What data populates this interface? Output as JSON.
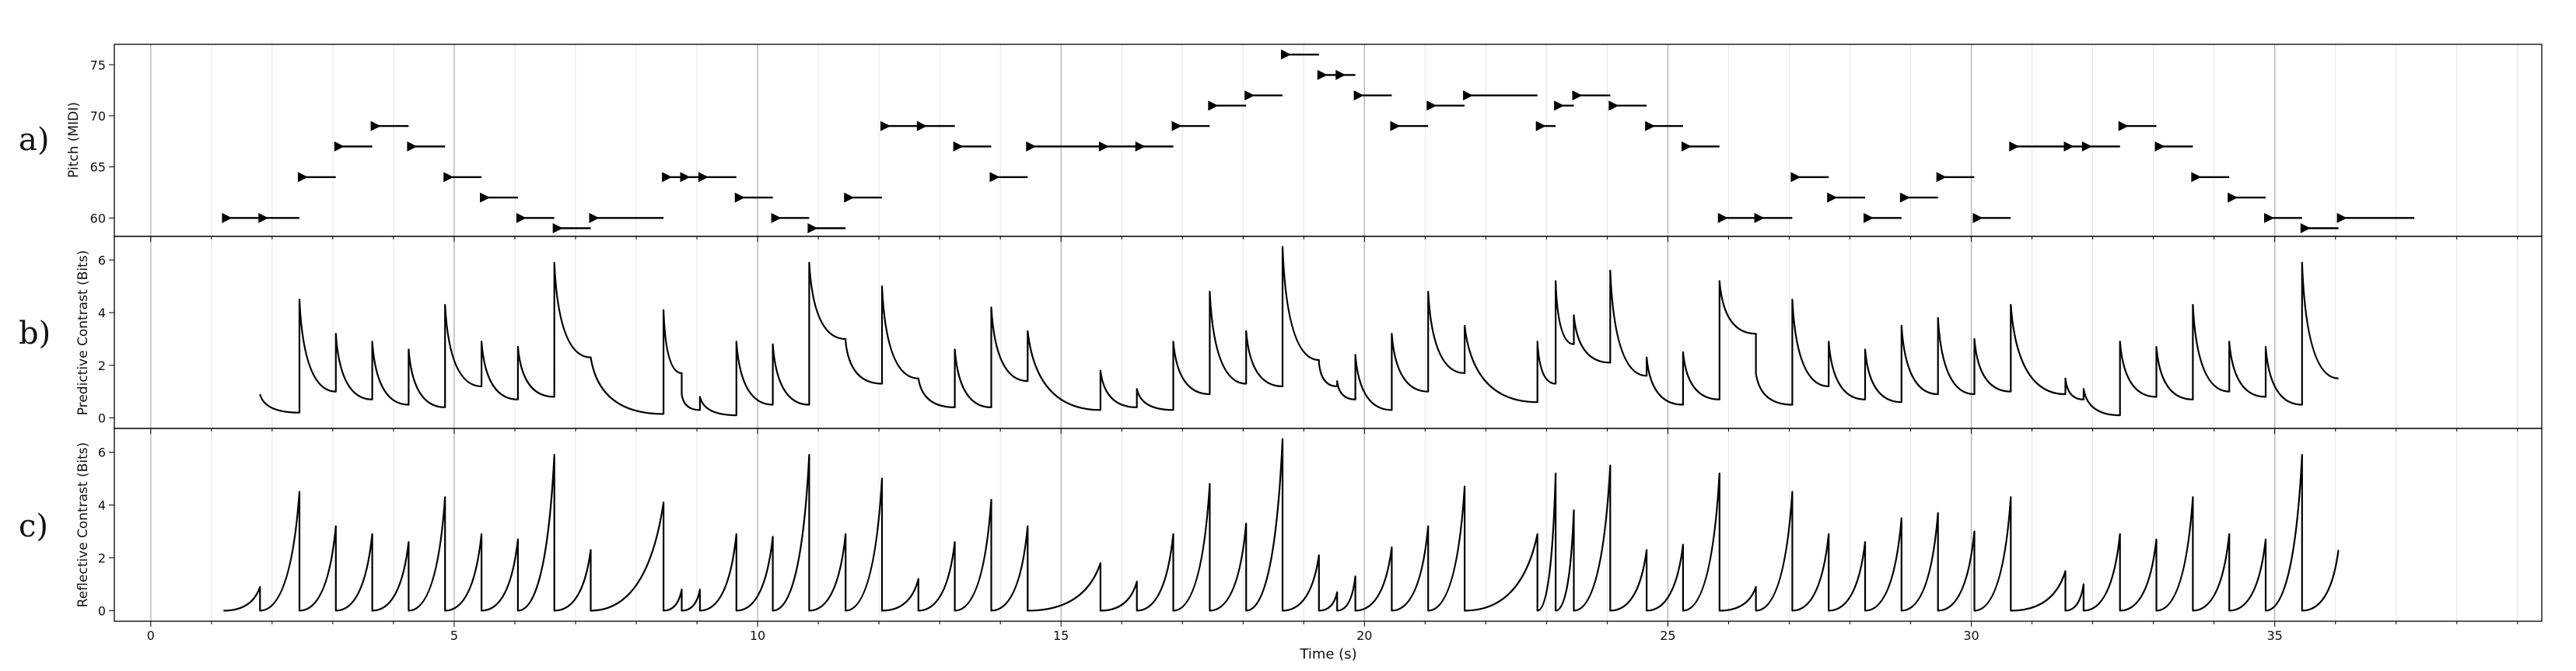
{
  "figure": {
    "panel_labels": [
      "a)",
      "b)",
      "c)"
    ],
    "xlabel": "Time (s)"
  },
  "chart_data": [
    {
      "type": "scatter",
      "panel": "a)",
      "ylabel": "Pitch (MIDI)",
      "xlim": [
        -0.6,
        39.4
      ],
      "ylim": [
        58.2,
        77.0
      ],
      "x_ticks": [
        0,
        5,
        10,
        15,
        20,
        25,
        30,
        35
      ],
      "y_ticks": [
        60,
        65,
        70,
        75
      ],
      "grid": "vertical",
      "notes": [
        [
          1.2,
          1.8,
          60
        ],
        [
          1.8,
          2.45,
          60
        ],
        [
          2.45,
          3.05,
          64
        ],
        [
          3.05,
          3.65,
          67
        ],
        [
          3.65,
          4.25,
          69
        ],
        [
          4.25,
          4.85,
          67
        ],
        [
          4.85,
          5.45,
          64
        ],
        [
          5.45,
          6.05,
          62
        ],
        [
          6.05,
          6.65,
          60
        ],
        [
          6.65,
          7.25,
          59
        ],
        [
          7.25,
          8.45,
          60
        ],
        [
          8.45,
          8.75,
          64
        ],
        [
          8.75,
          9.05,
          64
        ],
        [
          9.05,
          9.65,
          64
        ],
        [
          9.65,
          10.25,
          62
        ],
        [
          10.25,
          10.85,
          60
        ],
        [
          10.85,
          11.45,
          59
        ],
        [
          11.45,
          12.05,
          62
        ],
        [
          12.05,
          12.65,
          69
        ],
        [
          12.65,
          13.25,
          69
        ],
        [
          13.25,
          13.85,
          67
        ],
        [
          13.85,
          14.45,
          64
        ],
        [
          14.45,
          15.65,
          67
        ],
        [
          15.65,
          16.25,
          67
        ],
        [
          16.25,
          16.85,
          67
        ],
        [
          16.85,
          17.45,
          69
        ],
        [
          17.45,
          18.05,
          71
        ],
        [
          18.05,
          18.65,
          72
        ],
        [
          18.65,
          19.25,
          76
        ],
        [
          19.25,
          19.55,
          74
        ],
        [
          19.55,
          19.85,
          74
        ],
        [
          19.85,
          20.45,
          72
        ],
        [
          20.45,
          21.05,
          69
        ],
        [
          21.05,
          21.65,
          71
        ],
        [
          21.65,
          22.85,
          72
        ],
        [
          22.85,
          23.15,
          69
        ],
        [
          23.15,
          23.45,
          71
        ],
        [
          23.45,
          24.05,
          72
        ],
        [
          24.05,
          24.65,
          71
        ],
        [
          24.65,
          25.25,
          69
        ],
        [
          25.25,
          25.85,
          67
        ],
        [
          25.85,
          26.45,
          60
        ],
        [
          26.45,
          27.05,
          60
        ],
        [
          27.05,
          27.65,
          64
        ],
        [
          27.65,
          28.25,
          62
        ],
        [
          28.25,
          28.85,
          60
        ],
        [
          28.85,
          29.45,
          62
        ],
        [
          29.45,
          30.05,
          64
        ],
        [
          30.05,
          30.65,
          60
        ],
        [
          30.65,
          31.55,
          67
        ],
        [
          31.55,
          31.85,
          67
        ],
        [
          31.85,
          32.45,
          67
        ],
        [
          32.45,
          33.05,
          69
        ],
        [
          33.05,
          33.65,
          67
        ],
        [
          33.65,
          34.25,
          64
        ],
        [
          34.25,
          34.85,
          62
        ],
        [
          34.85,
          35.45,
          60
        ],
        [
          35.45,
          36.05,
          59
        ],
        [
          36.05,
          37.3,
          60
        ]
      ]
    },
    {
      "type": "line",
      "panel": "b)",
      "ylabel": "Predictive Contrast (Bits)",
      "xlim": [
        -0.6,
        39.4
      ],
      "ylim": [
        -0.4,
        6.9
      ],
      "x_ticks": [
        0,
        5,
        10,
        15,
        20,
        25,
        30,
        35
      ],
      "y_ticks": [
        0,
        2,
        4,
        6
      ],
      "grid": "vertical",
      "segments": [
        [
          1.8,
          2.45,
          0.9,
          0.2
        ],
        [
          2.45,
          3.05,
          4.5,
          1.0
        ],
        [
          3.05,
          3.65,
          3.2,
          0.7
        ],
        [
          3.65,
          4.25,
          2.9,
          0.5
        ],
        [
          4.25,
          4.85,
          2.6,
          0.4
        ],
        [
          4.85,
          5.45,
          4.3,
          1.2
        ],
        [
          5.45,
          6.05,
          2.9,
          0.7
        ],
        [
          6.05,
          6.65,
          2.7,
          0.8
        ],
        [
          6.65,
          7.25,
          5.9,
          2.3
        ],
        [
          7.25,
          8.45,
          2.3,
          0.15
        ],
        [
          8.45,
          8.75,
          4.1,
          1.7
        ],
        [
          8.75,
          9.05,
          0.9,
          0.3
        ],
        [
          9.05,
          9.65,
          0.8,
          0.1
        ],
        [
          9.65,
          10.25,
          2.9,
          0.5
        ],
        [
          10.25,
          10.85,
          2.8,
          0.5
        ],
        [
          10.85,
          11.45,
          5.9,
          3.0
        ],
        [
          11.45,
          12.05,
          2.9,
          1.3
        ],
        [
          12.05,
          12.65,
          5.0,
          1.5
        ],
        [
          12.65,
          13.25,
          1.5,
          0.4
        ],
        [
          13.25,
          13.85,
          2.6,
          0.4
        ],
        [
          13.85,
          14.45,
          4.2,
          1.4
        ],
        [
          14.45,
          15.65,
          3.3,
          0.3
        ],
        [
          15.65,
          16.25,
          1.8,
          0.4
        ],
        [
          16.25,
          16.85,
          1.1,
          0.3
        ],
        [
          16.85,
          17.45,
          2.9,
          0.9
        ],
        [
          17.45,
          18.05,
          4.8,
          1.3
        ],
        [
          18.05,
          18.65,
          3.3,
          1.2
        ],
        [
          18.65,
          19.25,
          6.5,
          2.2
        ],
        [
          19.25,
          19.55,
          2.1,
          1.2
        ],
        [
          19.55,
          19.85,
          1.4,
          0.7
        ],
        [
          19.85,
          20.45,
          2.4,
          0.3
        ],
        [
          20.45,
          21.05,
          3.2,
          1.0
        ],
        [
          21.05,
          21.65,
          4.8,
          1.7
        ],
        [
          21.65,
          22.85,
          3.5,
          0.6
        ],
        [
          22.85,
          23.15,
          2.9,
          1.3
        ],
        [
          23.15,
          23.45,
          5.2,
          2.8
        ],
        [
          23.45,
          24.05,
          3.9,
          2.1
        ],
        [
          24.05,
          24.65,
          5.6,
          1.6
        ],
        [
          24.65,
          25.25,
          2.3,
          0.5
        ],
        [
          25.25,
          25.85,
          2.5,
          0.7
        ],
        [
          25.85,
          26.45,
          5.2,
          3.2
        ],
        [
          26.45,
          27.05,
          1.7,
          0.5
        ],
        [
          27.05,
          27.65,
          4.5,
          1.2
        ],
        [
          27.65,
          28.25,
          2.9,
          0.7
        ],
        [
          28.25,
          28.85,
          2.6,
          0.6
        ],
        [
          28.85,
          29.45,
          3.5,
          0.9
        ],
        [
          29.45,
          30.05,
          3.8,
          0.9
        ],
        [
          30.05,
          30.65,
          3.0,
          1.0
        ],
        [
          30.65,
          31.55,
          4.3,
          0.9
        ],
        [
          31.55,
          31.85,
          1.5,
          0.7
        ],
        [
          31.85,
          32.45,
          1.1,
          0.1
        ],
        [
          32.45,
          33.05,
          2.9,
          0.8
        ],
        [
          33.05,
          33.65,
          2.7,
          0.7
        ],
        [
          33.65,
          34.25,
          4.3,
          1.0
        ],
        [
          34.25,
          34.85,
          2.9,
          0.8
        ],
        [
          34.85,
          35.45,
          2.7,
          0.5
        ],
        [
          35.45,
          36.05,
          5.9,
          1.5
        ]
      ]
    },
    {
      "type": "line",
      "panel": "c)",
      "ylabel": "Reflective Contrast (Bits)",
      "xlim": [
        -0.6,
        39.4
      ],
      "ylim": [
        -0.4,
        6.9
      ],
      "x_ticks": [
        0,
        5,
        10,
        15,
        20,
        25,
        30,
        35
      ],
      "y_ticks": [
        0,
        2,
        4,
        6
      ],
      "grid": "vertical",
      "segments": [
        [
          1.2,
          1.8,
          0.0,
          0.9
        ],
        [
          1.8,
          2.45,
          0.0,
          4.5
        ],
        [
          2.45,
          3.05,
          0.0,
          3.2
        ],
        [
          3.05,
          3.65,
          0.0,
          2.9
        ],
        [
          3.65,
          4.25,
          0.0,
          2.6
        ],
        [
          4.25,
          4.85,
          0.0,
          4.3
        ],
        [
          4.85,
          5.45,
          0.0,
          2.9
        ],
        [
          5.45,
          6.05,
          0.0,
          2.7
        ],
        [
          6.05,
          6.65,
          0.0,
          5.9
        ],
        [
          6.65,
          7.25,
          0.0,
          2.3
        ],
        [
          7.25,
          8.45,
          0.0,
          4.1
        ],
        [
          8.45,
          8.75,
          0.0,
          0.8
        ],
        [
          8.75,
          9.05,
          0.0,
          0.8
        ],
        [
          9.05,
          9.65,
          0.0,
          2.9
        ],
        [
          9.65,
          10.25,
          0.0,
          2.8
        ],
        [
          10.25,
          10.85,
          0.0,
          5.9
        ],
        [
          10.85,
          11.45,
          0.0,
          2.9
        ],
        [
          11.45,
          12.05,
          0.0,
          5.0
        ],
        [
          12.05,
          12.65,
          0.0,
          1.2
        ],
        [
          12.65,
          13.25,
          0.0,
          2.6
        ],
        [
          13.25,
          13.85,
          0.0,
          4.2
        ],
        [
          13.85,
          14.45,
          0.0,
          3.2
        ],
        [
          14.45,
          15.65,
          0.0,
          1.8
        ],
        [
          15.65,
          16.25,
          0.0,
          1.1
        ],
        [
          16.25,
          16.85,
          0.0,
          2.9
        ],
        [
          16.85,
          17.45,
          0.0,
          4.8
        ],
        [
          17.45,
          18.05,
          0.0,
          3.3
        ],
        [
          18.05,
          18.65,
          0.0,
          6.5
        ],
        [
          18.65,
          19.25,
          0.0,
          2.1
        ],
        [
          19.25,
          19.55,
          0.0,
          0.7
        ],
        [
          19.55,
          19.85,
          0.0,
          1.3
        ],
        [
          19.85,
          20.45,
          0.0,
          2.4
        ],
        [
          20.45,
          21.05,
          0.0,
          3.2
        ],
        [
          21.05,
          21.65,
          0.0,
          4.7
        ],
        [
          21.65,
          22.85,
          0.0,
          2.9
        ],
        [
          22.85,
          23.15,
          0.0,
          5.2
        ],
        [
          23.15,
          23.45,
          0.0,
          3.8
        ],
        [
          23.45,
          24.05,
          0.0,
          5.5
        ],
        [
          24.05,
          24.65,
          0.0,
          2.3
        ],
        [
          24.65,
          25.25,
          0.0,
          2.5
        ],
        [
          25.25,
          25.85,
          0.0,
          5.2
        ],
        [
          25.85,
          26.45,
          0.0,
          0.9
        ],
        [
          26.45,
          27.05,
          0.0,
          4.5
        ],
        [
          27.05,
          27.65,
          0.0,
          2.9
        ],
        [
          27.65,
          28.25,
          0.0,
          2.6
        ],
        [
          28.25,
          28.85,
          0.0,
          3.5
        ],
        [
          28.85,
          29.45,
          0.0,
          3.7
        ],
        [
          29.45,
          30.05,
          0.0,
          3.0
        ],
        [
          30.05,
          30.65,
          0.0,
          4.3
        ],
        [
          30.65,
          31.55,
          0.0,
          1.5
        ],
        [
          31.55,
          31.85,
          0.0,
          1.0
        ],
        [
          31.85,
          32.45,
          0.0,
          2.9
        ],
        [
          32.45,
          33.05,
          0.0,
          2.7
        ],
        [
          33.05,
          33.65,
          0.0,
          4.3
        ],
        [
          33.65,
          34.25,
          0.0,
          2.9
        ],
        [
          34.25,
          34.85,
          0.0,
          2.7
        ],
        [
          34.85,
          35.45,
          0.0,
          5.9
        ],
        [
          35.45,
          36.05,
          0.0,
          2.3
        ]
      ]
    }
  ]
}
